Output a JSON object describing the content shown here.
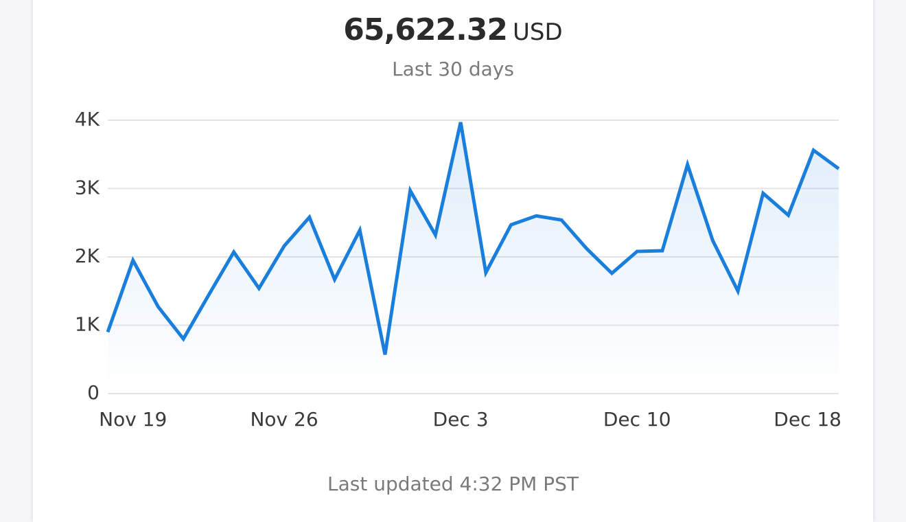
{
  "header": {
    "amount": "65,622.32",
    "currency": "USD",
    "period": "Last 30 days"
  },
  "footer": {
    "updated": "Last updated 4:32 PM PST"
  },
  "chart_data": {
    "type": "line",
    "categories": [
      null,
      "Nov 19",
      null,
      null,
      null,
      null,
      null,
      "Nov 26",
      null,
      null,
      null,
      null,
      null,
      null,
      "Dec 3",
      null,
      null,
      null,
      null,
      null,
      null,
      "Dec 10",
      null,
      null,
      null,
      null,
      null,
      null,
      null,
      "Dec 18"
    ],
    "series": [
      {
        "color": "#1a7fdc",
        "values": [
          900,
          1950,
          1270,
          800,
          1440,
          2070,
          1540,
          2160,
          2580,
          1670,
          2390,
          570,
          2970,
          2320,
          3970,
          1770,
          2470,
          2600,
          2540,
          2120,
          1760,
          2080,
          2090,
          3350,
          2240,
          1500,
          2930,
          2610,
          3560,
          3290
        ]
      }
    ],
    "ylim": [
      0,
      4000
    ],
    "yticks": [
      0,
      {
        "value": 1000,
        "label": "1K"
      },
      {
        "value": 2000,
        "label": "2K"
      },
      {
        "value": 3000,
        "label": "3K"
      },
      {
        "value": 4000,
        "label": "4K"
      }
    ],
    "grid": true
  }
}
